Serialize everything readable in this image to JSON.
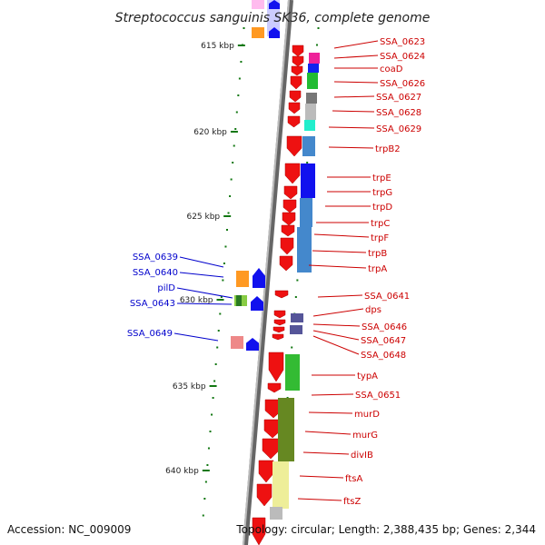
{
  "title": "Streptococcus sanguinis SK36, complete genome",
  "footer": {
    "accession": "Accession: NC_009009",
    "topology": "Topology: circular; Length: 2,388,435 bp; Genes: 2,344"
  },
  "colors": {
    "forward_gene": "#ee1111",
    "reverse_gene": "#1111ee",
    "backbone": "#888888",
    "tick": "#117711",
    "right_label": "#cc0000",
    "left_label": "#0000cc"
  },
  "scale": [
    {
      "label": "615 kbp"
    },
    {
      "label": "620 kbp"
    },
    {
      "label": "625 kbp"
    },
    {
      "label": "630 kbp"
    },
    {
      "label": "635 kbp"
    },
    {
      "label": "640 kbp"
    }
  ],
  "right_genes": [
    {
      "name": "SSA_0623"
    },
    {
      "name": "SSA_0624"
    },
    {
      "name": "coaD"
    },
    {
      "name": "SSA_0626"
    },
    {
      "name": "SSA_0627"
    },
    {
      "name": "SSA_0628"
    },
    {
      "name": "SSA_0629"
    },
    {
      "name": "trpB2"
    },
    {
      "name": "trpE"
    },
    {
      "name": "trpG"
    },
    {
      "name": "trpD"
    },
    {
      "name": "trpC"
    },
    {
      "name": "trpF"
    },
    {
      "name": "trpB"
    },
    {
      "name": "trpA"
    },
    {
      "name": "SSA_0641"
    },
    {
      "name": "dps"
    },
    {
      "name": "SSA_0646"
    },
    {
      "name": "SSA_0647"
    },
    {
      "name": "SSA_0648"
    },
    {
      "name": "typA"
    },
    {
      "name": "SSA_0651"
    },
    {
      "name": "murD"
    },
    {
      "name": "murG"
    },
    {
      "name": "divIB"
    },
    {
      "name": "ftsA"
    },
    {
      "name": "ftsZ"
    }
  ],
  "left_genes": [
    {
      "name": "SSA_0639"
    },
    {
      "name": "SSA_0640"
    },
    {
      "name": "pilD"
    },
    {
      "name": "SSA_0643"
    },
    {
      "name": "SSA_0649"
    }
  ]
}
